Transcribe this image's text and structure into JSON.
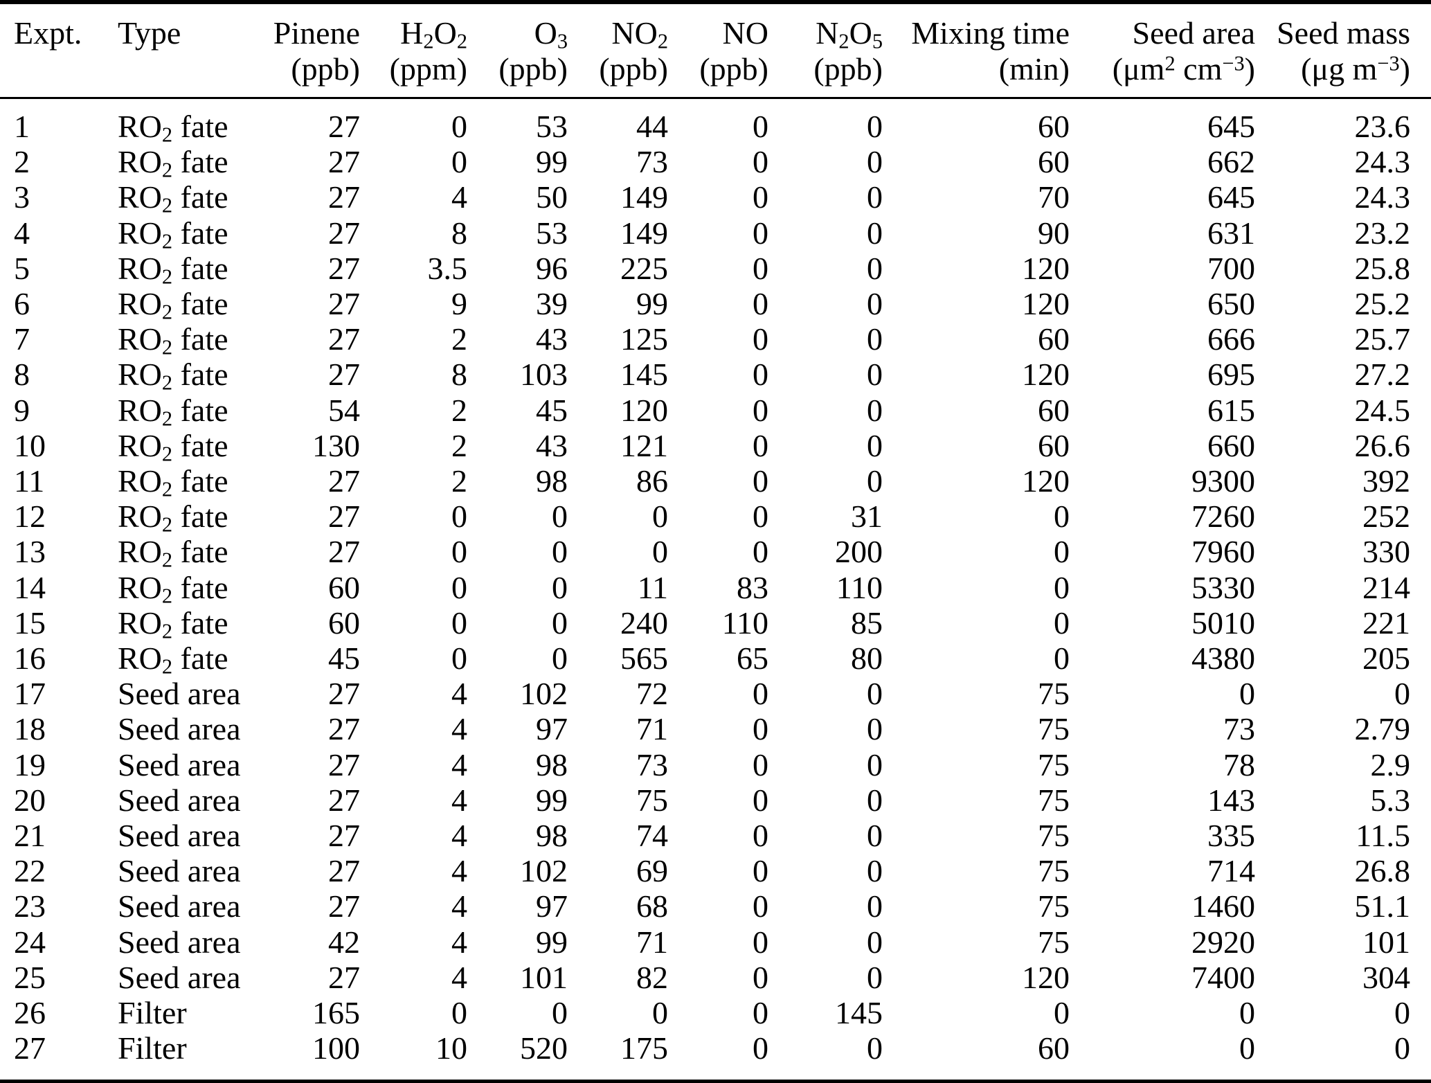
{
  "table": {
    "name": "experiment-conditions-table",
    "columns": [
      {
        "id": "expt",
        "label": "Expt.",
        "unit": "",
        "align": "left"
      },
      {
        "id": "type",
        "label": "Type",
        "unit": "",
        "align": "left"
      },
      {
        "id": "pinene",
        "label": "Pinene",
        "unit": "(ppb)",
        "align": "right"
      },
      {
        "id": "h2o2",
        "label": "H<sub>2</sub>O<sub>2</sub>",
        "unit": "(ppm)",
        "align": "right"
      },
      {
        "id": "o3",
        "label": "O<sub>3</sub>",
        "unit": "(ppb)",
        "align": "right"
      },
      {
        "id": "no2",
        "label": "NO<sub>2</sub>",
        "unit": "(ppb)",
        "align": "right"
      },
      {
        "id": "no",
        "label": "NO",
        "unit": "(ppb)",
        "align": "right"
      },
      {
        "id": "n2o5",
        "label": "N<sub>2</sub>O<sub>5</sub>",
        "unit": "(ppb)",
        "align": "right"
      },
      {
        "id": "mixing-time",
        "label": "Mixing time",
        "unit": "(min)",
        "align": "right"
      },
      {
        "id": "seed-area",
        "label": "Seed area",
        "unit": "(μm<sup>2</sup> cm<sup>−3</sup>)",
        "align": "right"
      },
      {
        "id": "seed-mass",
        "label": "Seed mass",
        "unit": "(μg m<sup>−3</sup>)",
        "align": "right"
      }
    ],
    "rows": [
      [
        "1",
        "RO<sub>2</sub> fate",
        "27",
        "0",
        "53",
        "44",
        "0",
        "0",
        "60",
        "645",
        "23.6"
      ],
      [
        "2",
        "RO<sub>2</sub> fate",
        "27",
        "0",
        "99",
        "73",
        "0",
        "0",
        "60",
        "662",
        "24.3"
      ],
      [
        "3",
        "RO<sub>2</sub> fate",
        "27",
        "4",
        "50",
        "149",
        "0",
        "0",
        "70",
        "645",
        "24.3"
      ],
      [
        "4",
        "RO<sub>2</sub> fate",
        "27",
        "8",
        "53",
        "149",
        "0",
        "0",
        "90",
        "631",
        "23.2"
      ],
      [
        "5",
        "RO<sub>2</sub> fate",
        "27",
        "3.5",
        "96",
        "225",
        "0",
        "0",
        "120",
        "700",
        "25.8"
      ],
      [
        "6",
        "RO<sub>2</sub> fate",
        "27",
        "9",
        "39",
        "99",
        "0",
        "0",
        "120",
        "650",
        "25.2"
      ],
      [
        "7",
        "RO<sub>2</sub> fate",
        "27",
        "2",
        "43",
        "125",
        "0",
        "0",
        "60",
        "666",
        "25.7"
      ],
      [
        "8",
        "RO<sub>2</sub> fate",
        "27",
        "8",
        "103",
        "145",
        "0",
        "0",
        "120",
        "695",
        "27.2"
      ],
      [
        "9",
        "RO<sub>2</sub> fate",
        "54",
        "2",
        "45",
        "120",
        "0",
        "0",
        "60",
        "615",
        "24.5"
      ],
      [
        "10",
        "RO<sub>2</sub> fate",
        "130",
        "2",
        "43",
        "121",
        "0",
        "0",
        "60",
        "660",
        "26.6"
      ],
      [
        "11",
        "RO<sub>2</sub> fate",
        "27",
        "2",
        "98",
        "86",
        "0",
        "0",
        "120",
        "9300",
        "392"
      ],
      [
        "12",
        "RO<sub>2</sub> fate",
        "27",
        "0",
        "0",
        "0",
        "0",
        "31",
        "0",
        "7260",
        "252"
      ],
      [
        "13",
        "RO<sub>2</sub> fate",
        "27",
        "0",
        "0",
        "0",
        "0",
        "200",
        "0",
        "7960",
        "330"
      ],
      [
        "14",
        "RO<sub>2</sub> fate",
        "60",
        "0",
        "0",
        "11",
        "83",
        "110",
        "0",
        "5330",
        "214"
      ],
      [
        "15",
        "RO<sub>2</sub> fate",
        "60",
        "0",
        "0",
        "240",
        "110",
        "85",
        "0",
        "5010",
        "221"
      ],
      [
        "16",
        "RO<sub>2</sub> fate",
        "45",
        "0",
        "0",
        "565",
        "65",
        "80",
        "0",
        "4380",
        "205"
      ],
      [
        "17",
        "Seed area",
        "27",
        "4",
        "102",
        "72",
        "0",
        "0",
        "75",
        "0",
        "0"
      ],
      [
        "18",
        "Seed area",
        "27",
        "4",
        "97",
        "71",
        "0",
        "0",
        "75",
        "73",
        "2.79"
      ],
      [
        "19",
        "Seed area",
        "27",
        "4",
        "98",
        "73",
        "0",
        "0",
        "75",
        "78",
        "2.9"
      ],
      [
        "20",
        "Seed area",
        "27",
        "4",
        "99",
        "75",
        "0",
        "0",
        "75",
        "143",
        "5.3"
      ],
      [
        "21",
        "Seed area",
        "27",
        "4",
        "98",
        "74",
        "0",
        "0",
        "75",
        "335",
        "11.5"
      ],
      [
        "22",
        "Seed area",
        "27",
        "4",
        "102",
        "69",
        "0",
        "0",
        "75",
        "714",
        "26.8"
      ],
      [
        "23",
        "Seed area",
        "27",
        "4",
        "97",
        "68",
        "0",
        "0",
        "75",
        "1460",
        "51.1"
      ],
      [
        "24",
        "Seed area",
        "42",
        "4",
        "99",
        "71",
        "0",
        "0",
        "75",
        "2920",
        "101"
      ],
      [
        "25",
        "Seed area",
        "27",
        "4",
        "101",
        "82",
        "0",
        "0",
        "120",
        "7400",
        "304"
      ],
      [
        "26",
        "Filter",
        "165",
        "0",
        "0",
        "0",
        "0",
        "145",
        "0",
        "0",
        "0"
      ],
      [
        "27",
        "Filter",
        "100",
        "10",
        "520",
        "175",
        "0",
        "0",
        "60",
        "0",
        "0"
      ]
    ]
  }
}
